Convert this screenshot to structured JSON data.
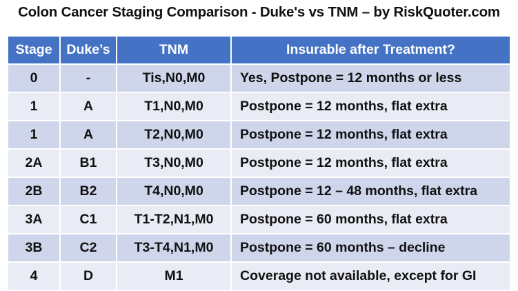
{
  "title": "Colon Cancer Staging Comparison - Duke's vs TNM – by RiskQuoter.com",
  "table": {
    "headers": [
      "Stage",
      "Duke’s",
      "TNM",
      "Insurable after Treatment?"
    ],
    "rows": [
      {
        "stage": "0",
        "dukes": "-",
        "tnm": "Tis,N0,M0",
        "insurable": "Yes, Postpone = 12 months or less"
      },
      {
        "stage": "1",
        "dukes": "A",
        "tnm": "T1,N0,M0",
        "insurable": "Postpone = 12 months, flat extra"
      },
      {
        "stage": "1",
        "dukes": "A",
        "tnm": "T2,N0,M0",
        "insurable": "Postpone = 12 months, flat extra"
      },
      {
        "stage": "2A",
        "dukes": "B1",
        "tnm": "T3,N0,M0",
        "insurable": "Postpone = 12 months, flat extra"
      },
      {
        "stage": "2B",
        "dukes": "B2",
        "tnm": "T4,N0,M0",
        "insurable": "Postpone = 12 – 48 months, flat extra"
      },
      {
        "stage": "3A",
        "dukes": "C1",
        "tnm": "T1-T2,N1,M0",
        "insurable": "Postpone = 60 months, flat extra"
      },
      {
        "stage": "3B",
        "dukes": "C2",
        "tnm": "T3-T4,N1,M0",
        "insurable": "Postpone = 60 months – decline"
      },
      {
        "stage": "4",
        "dukes": "D",
        "tnm": "M1",
        "insurable": "Coverage not available, except for GI"
      }
    ]
  },
  "colors": {
    "header_bg": "#4472c4",
    "row_odd_bg": "#cfd5ea",
    "row_even_bg": "#e9ebf5"
  }
}
